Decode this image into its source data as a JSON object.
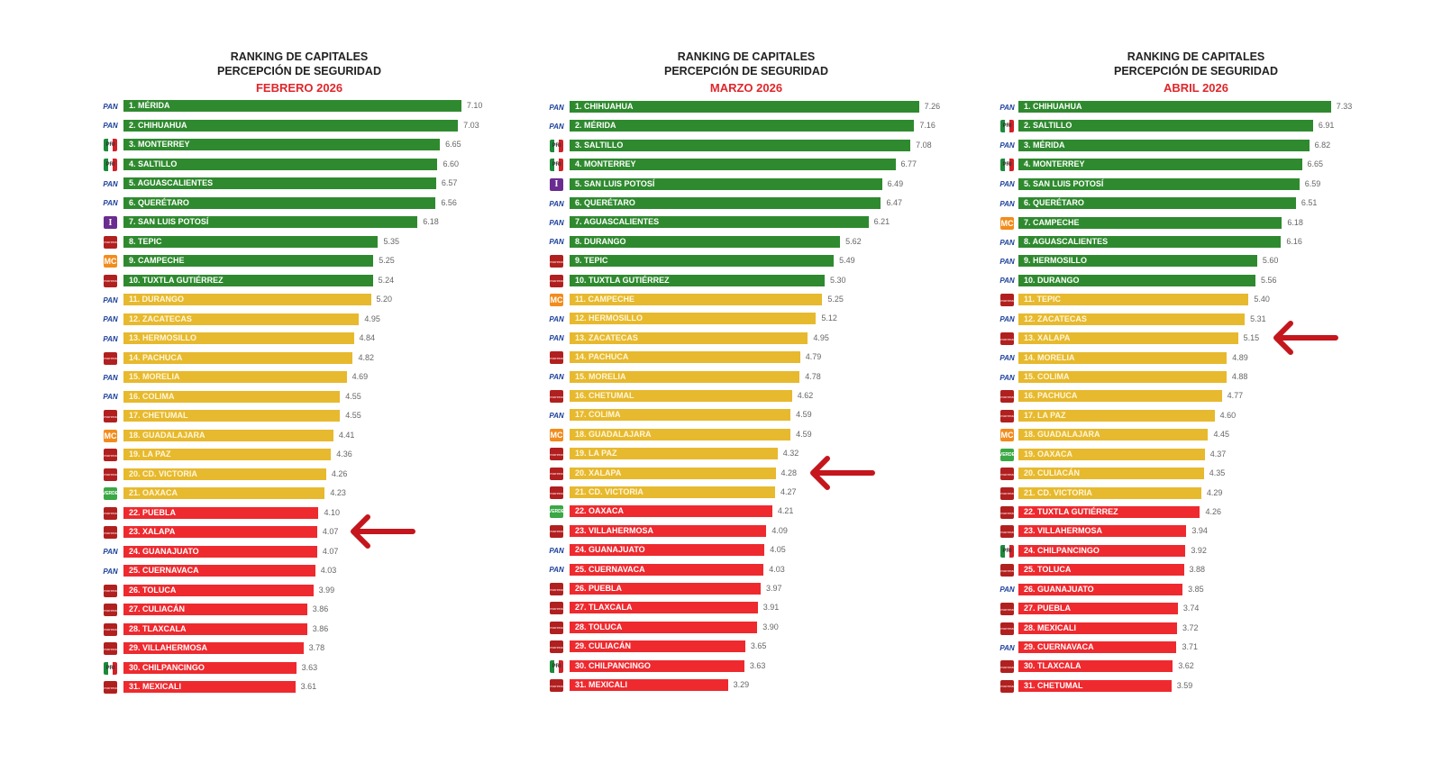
{
  "colors": {
    "green": "#2f8a2f",
    "yellow": "#e7b92e",
    "red": "#ee2a2f",
    "month": "#e0262b",
    "arrow": "#c4161c"
  },
  "party_labels": {
    "PAN": "PAN",
    "PRI": "PRI",
    "MORENA": "morena",
    "MC": "MC",
    "IND": "I",
    "VERDE": "VERDE"
  },
  "chart_data": [
    {
      "type": "bar",
      "title_line1": "RANKING DE CAPITALES",
      "title_line2": "PERCEPCIÓN DE SEGURIDAD",
      "period": "FEBRERO 2026",
      "highlight_rank": 23,
      "rows": [
        {
          "label": "1. MÉRIDA",
          "value": 7.1,
          "value_text": "7.10",
          "party": "PAN",
          "color": "green"
        },
        {
          "label": "2. CHIHUAHUA",
          "value": 7.03,
          "value_text": "7.03",
          "party": "PAN",
          "color": "green"
        },
        {
          "label": "3. MONTERREY",
          "value": 6.65,
          "value_text": "6.65",
          "party": "PRI",
          "color": "green"
        },
        {
          "label": "4. SALTILLO",
          "value": 6.6,
          "value_text": "6.60",
          "party": "PRI",
          "color": "green"
        },
        {
          "label": "5. AGUASCALIENTES",
          "value": 6.57,
          "value_text": "6.57",
          "party": "PAN",
          "color": "green"
        },
        {
          "label": "6. QUERÉTARO",
          "value": 6.56,
          "value_text": "6.56",
          "party": "PAN",
          "color": "green"
        },
        {
          "label": "7. SAN LUIS POTOSÍ",
          "value": 6.18,
          "value_text": "6.18",
          "party": "IND",
          "color": "green"
        },
        {
          "label": "8. TEPIC",
          "value": 5.35,
          "value_text": "5.35",
          "party": "MORENA",
          "color": "green"
        },
        {
          "label": "9. CAMPECHE",
          "value": 5.25,
          "value_text": "5.25",
          "party": "MC",
          "color": "green"
        },
        {
          "label": "10. TUXTLA GUTIÉRREZ",
          "value": 5.24,
          "value_text": "5.24",
          "party": "MORENA",
          "color": "green"
        },
        {
          "label": "11. DURANGO",
          "value": 5.2,
          "value_text": "5.20",
          "party": "PAN",
          "color": "yellow"
        },
        {
          "label": "12. ZACATECAS",
          "value": 4.95,
          "value_text": "4.95",
          "party": "PAN",
          "color": "yellow"
        },
        {
          "label": "13. HERMOSILLO",
          "value": 4.84,
          "value_text": "4.84",
          "party": "PAN",
          "color": "yellow"
        },
        {
          "label": "14. PACHUCA",
          "value": 4.82,
          "value_text": "4.82",
          "party": "MORENA",
          "color": "yellow"
        },
        {
          "label": "15. MORELIA",
          "value": 4.69,
          "value_text": "4.69",
          "party": "PAN",
          "color": "yellow"
        },
        {
          "label": "16. COLIMA",
          "value": 4.55,
          "value_text": "4.55",
          "party": "PAN",
          "color": "yellow"
        },
        {
          "label": "17. CHETUMAL",
          "value": 4.55,
          "value_text": "4.55",
          "party": "MORENA",
          "color": "yellow"
        },
        {
          "label": "18. GUADALAJARA",
          "value": 4.41,
          "value_text": "4.41",
          "party": "MC",
          "color": "yellow"
        },
        {
          "label": "19. LA PAZ",
          "value": 4.36,
          "value_text": "4.36",
          "party": "MORENA",
          "color": "yellow"
        },
        {
          "label": "20. CD. VICTORIA",
          "value": 4.26,
          "value_text": "4.26",
          "party": "MORENA",
          "color": "yellow"
        },
        {
          "label": "21. OAXACA",
          "value": 4.23,
          "value_text": "4.23",
          "party": "VERDE",
          "color": "yellow"
        },
        {
          "label": "22. PUEBLA",
          "value": 4.1,
          "value_text": "4.10",
          "party": "MORENA",
          "color": "red"
        },
        {
          "label": "23. XALAPA",
          "value": 4.07,
          "value_text": "4.07",
          "party": "MORENA",
          "color": "red"
        },
        {
          "label": "24. GUANAJUATO",
          "value": 4.07,
          "value_text": "4.07",
          "party": "PAN",
          "color": "red"
        },
        {
          "label": "25. CUERNAVACA",
          "value": 4.03,
          "value_text": "4.03",
          "party": "PAN",
          "color": "red"
        },
        {
          "label": "26. TOLUCA",
          "value": 3.99,
          "value_text": "3.99",
          "party": "MORENA",
          "color": "red"
        },
        {
          "label": "27. CULIACÁN",
          "value": 3.86,
          "value_text": "3.86",
          "party": "MORENA",
          "color": "red"
        },
        {
          "label": "28. TLAXCALA",
          "value": 3.86,
          "value_text": "3.86",
          "party": "MORENA",
          "color": "red"
        },
        {
          "label": "29. VILLAHERMOSA",
          "value": 3.78,
          "value_text": "3.78",
          "party": "MORENA",
          "color": "red"
        },
        {
          "label": "30. CHILPANCINGO",
          "value": 3.63,
          "value_text": "3.63",
          "party": "PRI",
          "color": "red"
        },
        {
          "label": "31. MEXICALI",
          "value": 3.61,
          "value_text": "3.61",
          "party": "MORENA",
          "color": "red"
        }
      ]
    },
    {
      "type": "bar",
      "title_line1": "RANKING DE CAPITALES",
      "title_line2": "PERCEPCIÓN DE SEGURIDAD",
      "period": "MARZO 2026",
      "highlight_rank": 20,
      "rows": [
        {
          "label": "1. CHIHUAHUA",
          "value": 7.26,
          "value_text": "7.26",
          "party": "PAN",
          "color": "green"
        },
        {
          "label": "2. MÉRIDA",
          "value": 7.16,
          "value_text": "7.16",
          "party": "PAN",
          "color": "green"
        },
        {
          "label": "3. SALTILLO",
          "value": 7.08,
          "value_text": "7.08",
          "party": "PRI",
          "color": "green"
        },
        {
          "label": "4. MONTERREY",
          "value": 6.77,
          "value_text": "6.77",
          "party": "PRI",
          "color": "green"
        },
        {
          "label": "5. SAN LUIS POTOSÍ",
          "value": 6.49,
          "value_text": "6.49",
          "party": "IND",
          "color": "green"
        },
        {
          "label": "6. QUERÉTARO",
          "value": 6.47,
          "value_text": "6.47",
          "party": "PAN",
          "color": "green"
        },
        {
          "label": "7. AGUASCALIENTES",
          "value": 6.21,
          "value_text": "6.21",
          "party": "PAN",
          "color": "green"
        },
        {
          "label": "8. DURANGO",
          "value": 5.62,
          "value_text": "5.62",
          "party": "PAN",
          "color": "green"
        },
        {
          "label": "9. TEPIC",
          "value": 5.49,
          "value_text": "5.49",
          "party": "MORENA",
          "color": "green"
        },
        {
          "label": "10. TUXTLA GUTIÉRREZ",
          "value": 5.3,
          "value_text": "5.30",
          "party": "MORENA",
          "color": "green"
        },
        {
          "label": "11. CAMPECHE",
          "value": 5.25,
          "value_text": "5.25",
          "party": "MC",
          "color": "yellow"
        },
        {
          "label": "12. HERMOSILLO",
          "value": 5.12,
          "value_text": "5.12",
          "party": "PAN",
          "color": "yellow"
        },
        {
          "label": "13. ZACATECAS",
          "value": 4.95,
          "value_text": "4.95",
          "party": "PAN",
          "color": "yellow"
        },
        {
          "label": "14. PACHUCA",
          "value": 4.79,
          "value_text": "4.79",
          "party": "MORENA",
          "color": "yellow"
        },
        {
          "label": "15. MORELIA",
          "value": 4.78,
          "value_text": "4.78",
          "party": "PAN",
          "color": "yellow"
        },
        {
          "label": "16. CHETUMAL",
          "value": 4.62,
          "value_text": "4.62",
          "party": "MORENA",
          "color": "yellow"
        },
        {
          "label": "17. COLIMA",
          "value": 4.59,
          "value_text": "4.59",
          "party": "PAN",
          "color": "yellow"
        },
        {
          "label": "18. GUADALAJARA",
          "value": 4.59,
          "value_text": "4.59",
          "party": "MC",
          "color": "yellow"
        },
        {
          "label": "19. LA PAZ",
          "value": 4.32,
          "value_text": "4.32",
          "party": "MORENA",
          "color": "yellow"
        },
        {
          "label": "20. XALAPA",
          "value": 4.28,
          "value_text": "4.28",
          "party": "MORENA",
          "color": "yellow"
        },
        {
          "label": "21. CD. VICTORIA",
          "value": 4.27,
          "value_text": "4.27",
          "party": "MORENA",
          "color": "yellow"
        },
        {
          "label": "22. OAXACA",
          "value": 4.21,
          "value_text": "4.21",
          "party": "VERDE",
          "color": "red"
        },
        {
          "label": "23. VILLAHERMOSA",
          "value": 4.09,
          "value_text": "4.09",
          "party": "MORENA",
          "color": "red"
        },
        {
          "label": "24. GUANAJUATO",
          "value": 4.05,
          "value_text": "4.05",
          "party": "PAN",
          "color": "red"
        },
        {
          "label": "25. CUERNAVACA",
          "value": 4.03,
          "value_text": "4.03",
          "party": "PAN",
          "color": "red"
        },
        {
          "label": "26. PUEBLA",
          "value": 3.97,
          "value_text": "3.97",
          "party": "MORENA",
          "color": "red"
        },
        {
          "label": "27. TLAXCALA",
          "value": 3.91,
          "value_text": "3.91",
          "party": "MORENA",
          "color": "red"
        },
        {
          "label": "28. TOLUCA",
          "value": 3.9,
          "value_text": "3.90",
          "party": "MORENA",
          "color": "red"
        },
        {
          "label": "29. CULIACÁN",
          "value": 3.65,
          "value_text": "3.65",
          "party": "MORENA",
          "color": "red"
        },
        {
          "label": "30. CHILPANCINGO",
          "value": 3.63,
          "value_text": "3.63",
          "party": "PRI",
          "color": "red"
        },
        {
          "label": "31. MEXICALI",
          "value": 3.29,
          "value_text": "3.29",
          "party": "MORENA",
          "color": "red"
        }
      ]
    },
    {
      "type": "bar",
      "title_line1": "RANKING DE CAPITALES",
      "title_line2": "PERCEPCIÓN DE SEGURIDAD",
      "period": "ABRIL 2026",
      "highlight_rank": 13,
      "rows": [
        {
          "label": "1. CHIHUAHUA",
          "value": 7.33,
          "value_text": "7.33",
          "party": "PAN",
          "color": "green"
        },
        {
          "label": "2. SALTILLO",
          "value": 6.91,
          "value_text": "6.91",
          "party": "PRI",
          "color": "green"
        },
        {
          "label": "3. MÉRIDA",
          "value": 6.82,
          "value_text": "6.82",
          "party": "PAN",
          "color": "green"
        },
        {
          "label": "4. MONTERREY",
          "value": 6.65,
          "value_text": "6.65",
          "party": "PRI",
          "color": "green"
        },
        {
          "label": "5. SAN LUIS POTOSÍ",
          "value": 6.59,
          "value_text": "6.59",
          "party": "PAN",
          "color": "green"
        },
        {
          "label": "6. QUERÉTARO",
          "value": 6.51,
          "value_text": "6.51",
          "party": "PAN",
          "color": "green"
        },
        {
          "label": "7. CAMPECHE",
          "value": 6.18,
          "value_text": "6.18",
          "party": "MC",
          "color": "green"
        },
        {
          "label": "8. AGUASCALIENTES",
          "value": 6.16,
          "value_text": "6.16",
          "party": "PAN",
          "color": "green"
        },
        {
          "label": "9. HERMOSILLO",
          "value": 5.6,
          "value_text": "5.60",
          "party": "PAN",
          "color": "green"
        },
        {
          "label": "10. DURANGO",
          "value": 5.56,
          "value_text": "5.56",
          "party": "PAN",
          "color": "green"
        },
        {
          "label": "11. TEPIC",
          "value": 5.4,
          "value_text": "5.40",
          "party": "MORENA",
          "color": "yellow"
        },
        {
          "label": "12. ZACATECAS",
          "value": 5.31,
          "value_text": "5.31",
          "party": "PAN",
          "color": "yellow"
        },
        {
          "label": "13. XALAPA",
          "value": 5.15,
          "value_text": "5.15",
          "party": "MORENA",
          "color": "yellow"
        },
        {
          "label": "14. MORELIA",
          "value": 4.89,
          "value_text": "4.89",
          "party": "PAN",
          "color": "yellow"
        },
        {
          "label": "15. COLIMA",
          "value": 4.88,
          "value_text": "4.88",
          "party": "PAN",
          "color": "yellow"
        },
        {
          "label": "16. PACHUCA",
          "value": 4.77,
          "value_text": "4.77",
          "party": "MORENA",
          "color": "yellow"
        },
        {
          "label": "17. LA PAZ",
          "value": 4.6,
          "value_text": "4.60",
          "party": "MORENA",
          "color": "yellow"
        },
        {
          "label": "18. GUADALAJARA",
          "value": 4.45,
          "value_text": "4.45",
          "party": "MC",
          "color": "yellow"
        },
        {
          "label": "19. OAXACA",
          "value": 4.37,
          "value_text": "4.37",
          "party": "VERDE",
          "color": "yellow"
        },
        {
          "label": "20. CULIACÁN",
          "value": 4.35,
          "value_text": "4.35",
          "party": "MORENA",
          "color": "yellow"
        },
        {
          "label": "21. CD. VICTORIA",
          "value": 4.29,
          "value_text": "4.29",
          "party": "MORENA",
          "color": "yellow"
        },
        {
          "label": "22. TUXTLA GUTIÉRREZ",
          "value": 4.26,
          "value_text": "4.26",
          "party": "MORENA",
          "color": "red"
        },
        {
          "label": "23. VILLAHERMOSA",
          "value": 3.94,
          "value_text": "3.94",
          "party": "MORENA",
          "color": "red"
        },
        {
          "label": "24. CHILPANCINGO",
          "value": 3.92,
          "value_text": "3.92",
          "party": "PRI",
          "color": "red"
        },
        {
          "label": "25. TOLUCA",
          "value": 3.88,
          "value_text": "3.88",
          "party": "MORENA",
          "color": "red"
        },
        {
          "label": "26. GUANAJUATO",
          "value": 3.85,
          "value_text": "3.85",
          "party": "PAN",
          "color": "red"
        },
        {
          "label": "27. PUEBLA",
          "value": 3.74,
          "value_text": "3.74",
          "party": "MORENA",
          "color": "red"
        },
        {
          "label": "28. MEXICALI",
          "value": 3.72,
          "value_text": "3.72",
          "party": "MORENA",
          "color": "red"
        },
        {
          "label": "29. CUERNAVACA",
          "value": 3.71,
          "value_text": "3.71",
          "party": "PAN",
          "color": "red"
        },
        {
          "label": "30. TLAXCALA",
          "value": 3.62,
          "value_text": "3.62",
          "party": "MORENA",
          "color": "red"
        },
        {
          "label": "31. CHETUMAL",
          "value": 3.59,
          "value_text": "3.59",
          "party": "MORENA",
          "color": "red"
        }
      ]
    }
  ]
}
